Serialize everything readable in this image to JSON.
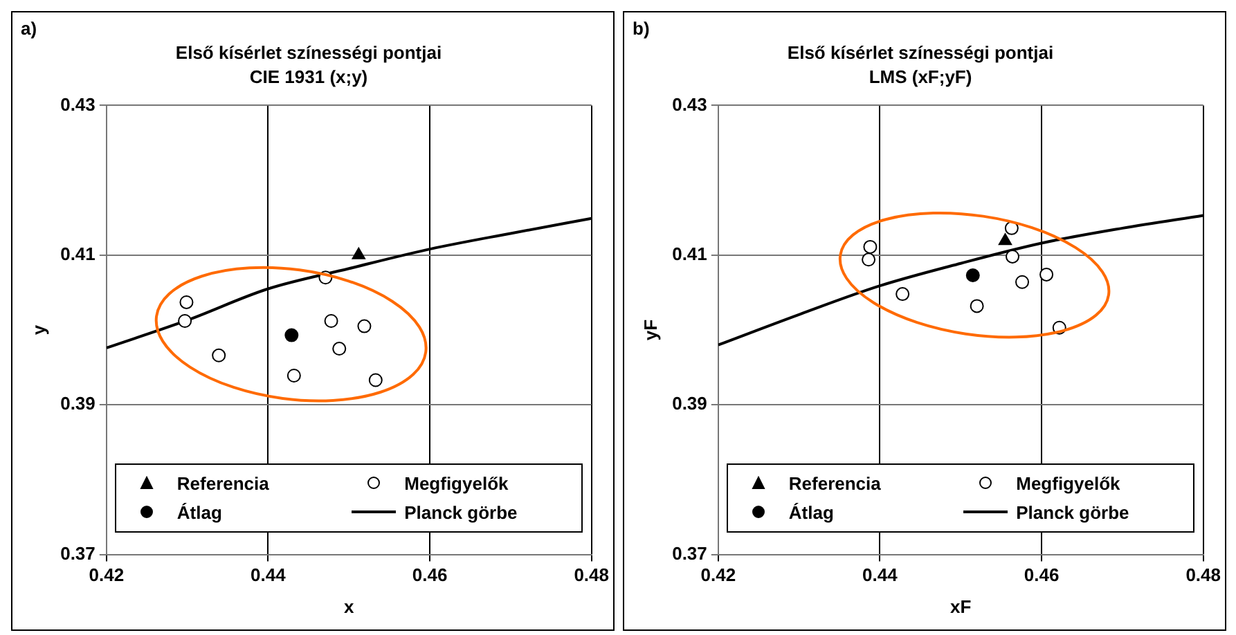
{
  "chart_data": [
    {
      "type": "scatter",
      "title": "Első kísérlet színességi pontjai",
      "subtitle": "CIE 1931 (x;y)",
      "xlabel": "x",
      "ylabel": "y",
      "annotations": [
        "a)"
      ],
      "xlim": [
        0.42,
        0.48
      ],
      "xticks": [
        0.42,
        0.44,
        0.46,
        0.48
      ],
      "ylim": [
        0.37,
        0.43
      ],
      "yticks": [
        0.37,
        0.39,
        0.41,
        0.43
      ],
      "grid": true,
      "legend": "bottom",
      "series": [
        {
          "name": "Referencia",
          "marker": "triangle",
          "color": "#000000",
          "x": [
            0.4512
          ],
          "values": [
            0.41
          ]
        },
        {
          "name": "Megfigyelők",
          "marker": "circle",
          "color": "#ffffff",
          "x": [
            0.4471,
            0.4299,
            0.4297,
            0.4339,
            0.4478,
            0.4519,
            0.4488,
            0.4432,
            0.4533
          ],
          "values": [
            0.407,
            0.4037,
            0.4012,
            0.3966,
            0.4012,
            0.4005,
            0.3975,
            0.3939,
            0.3933
          ]
        },
        {
          "name": "Átlag",
          "marker": "circle",
          "color": "#000000",
          "x": [
            0.4429
          ],
          "values": [
            0.3993
          ]
        },
        {
          "name": "Planck görbe",
          "type": "line",
          "marker": "none",
          "color": "#000000",
          "x": [
            0.42,
            0.43,
            0.44,
            0.45,
            0.46,
            0.47,
            0.48
          ],
          "values": [
            0.3976,
            0.4013,
            0.4055,
            0.4082,
            0.4108,
            0.4129,
            0.4149
          ]
        }
      ]
    },
    {
      "type": "scatter",
      "title": "Első kísérlet színességi pontjai",
      "subtitle": "LMS (xF;yF)",
      "xlabel": "xF",
      "ylabel": "yF",
      "annotations": [
        "b)"
      ],
      "xlim": [
        0.42,
        0.48
      ],
      "xticks": [
        0.42,
        0.44,
        0.46,
        0.48
      ],
      "ylim": [
        0.37,
        0.43
      ],
      "yticks": [
        0.37,
        0.39,
        0.41,
        0.43
      ],
      "grid": true,
      "legend": "bottom",
      "series": [
        {
          "name": "Referencia",
          "marker": "triangle",
          "color": "#000000",
          "x": [
            0.4555
          ],
          "values": [
            0.4119
          ]
        },
        {
          "name": "Megfigyelők",
          "marker": "circle",
          "color": "#ffffff",
          "x": [
            0.4563,
            0.4388,
            0.4386,
            0.4428,
            0.452,
            0.4564,
            0.4576,
            0.4606,
            0.4622
          ],
          "values": [
            0.4136,
            0.4111,
            0.4094,
            0.4048,
            0.4032,
            0.4098,
            0.4064,
            0.4074,
            0.4003
          ]
        },
        {
          "name": "Átlag",
          "marker": "circle",
          "color": "#000000",
          "x": [
            0.4515
          ],
          "values": [
            0.4073
          ]
        },
        {
          "name": "Planck görbe",
          "type": "line",
          "marker": "none",
          "color": "#000000",
          "x": [
            0.42,
            0.4301,
            0.44,
            0.45,
            0.46,
            0.47,
            0.48
          ],
          "values": [
            0.398,
            0.4021,
            0.4059,
            0.4089,
            0.4116,
            0.4136,
            0.4153
          ]
        }
      ]
    }
  ]
}
